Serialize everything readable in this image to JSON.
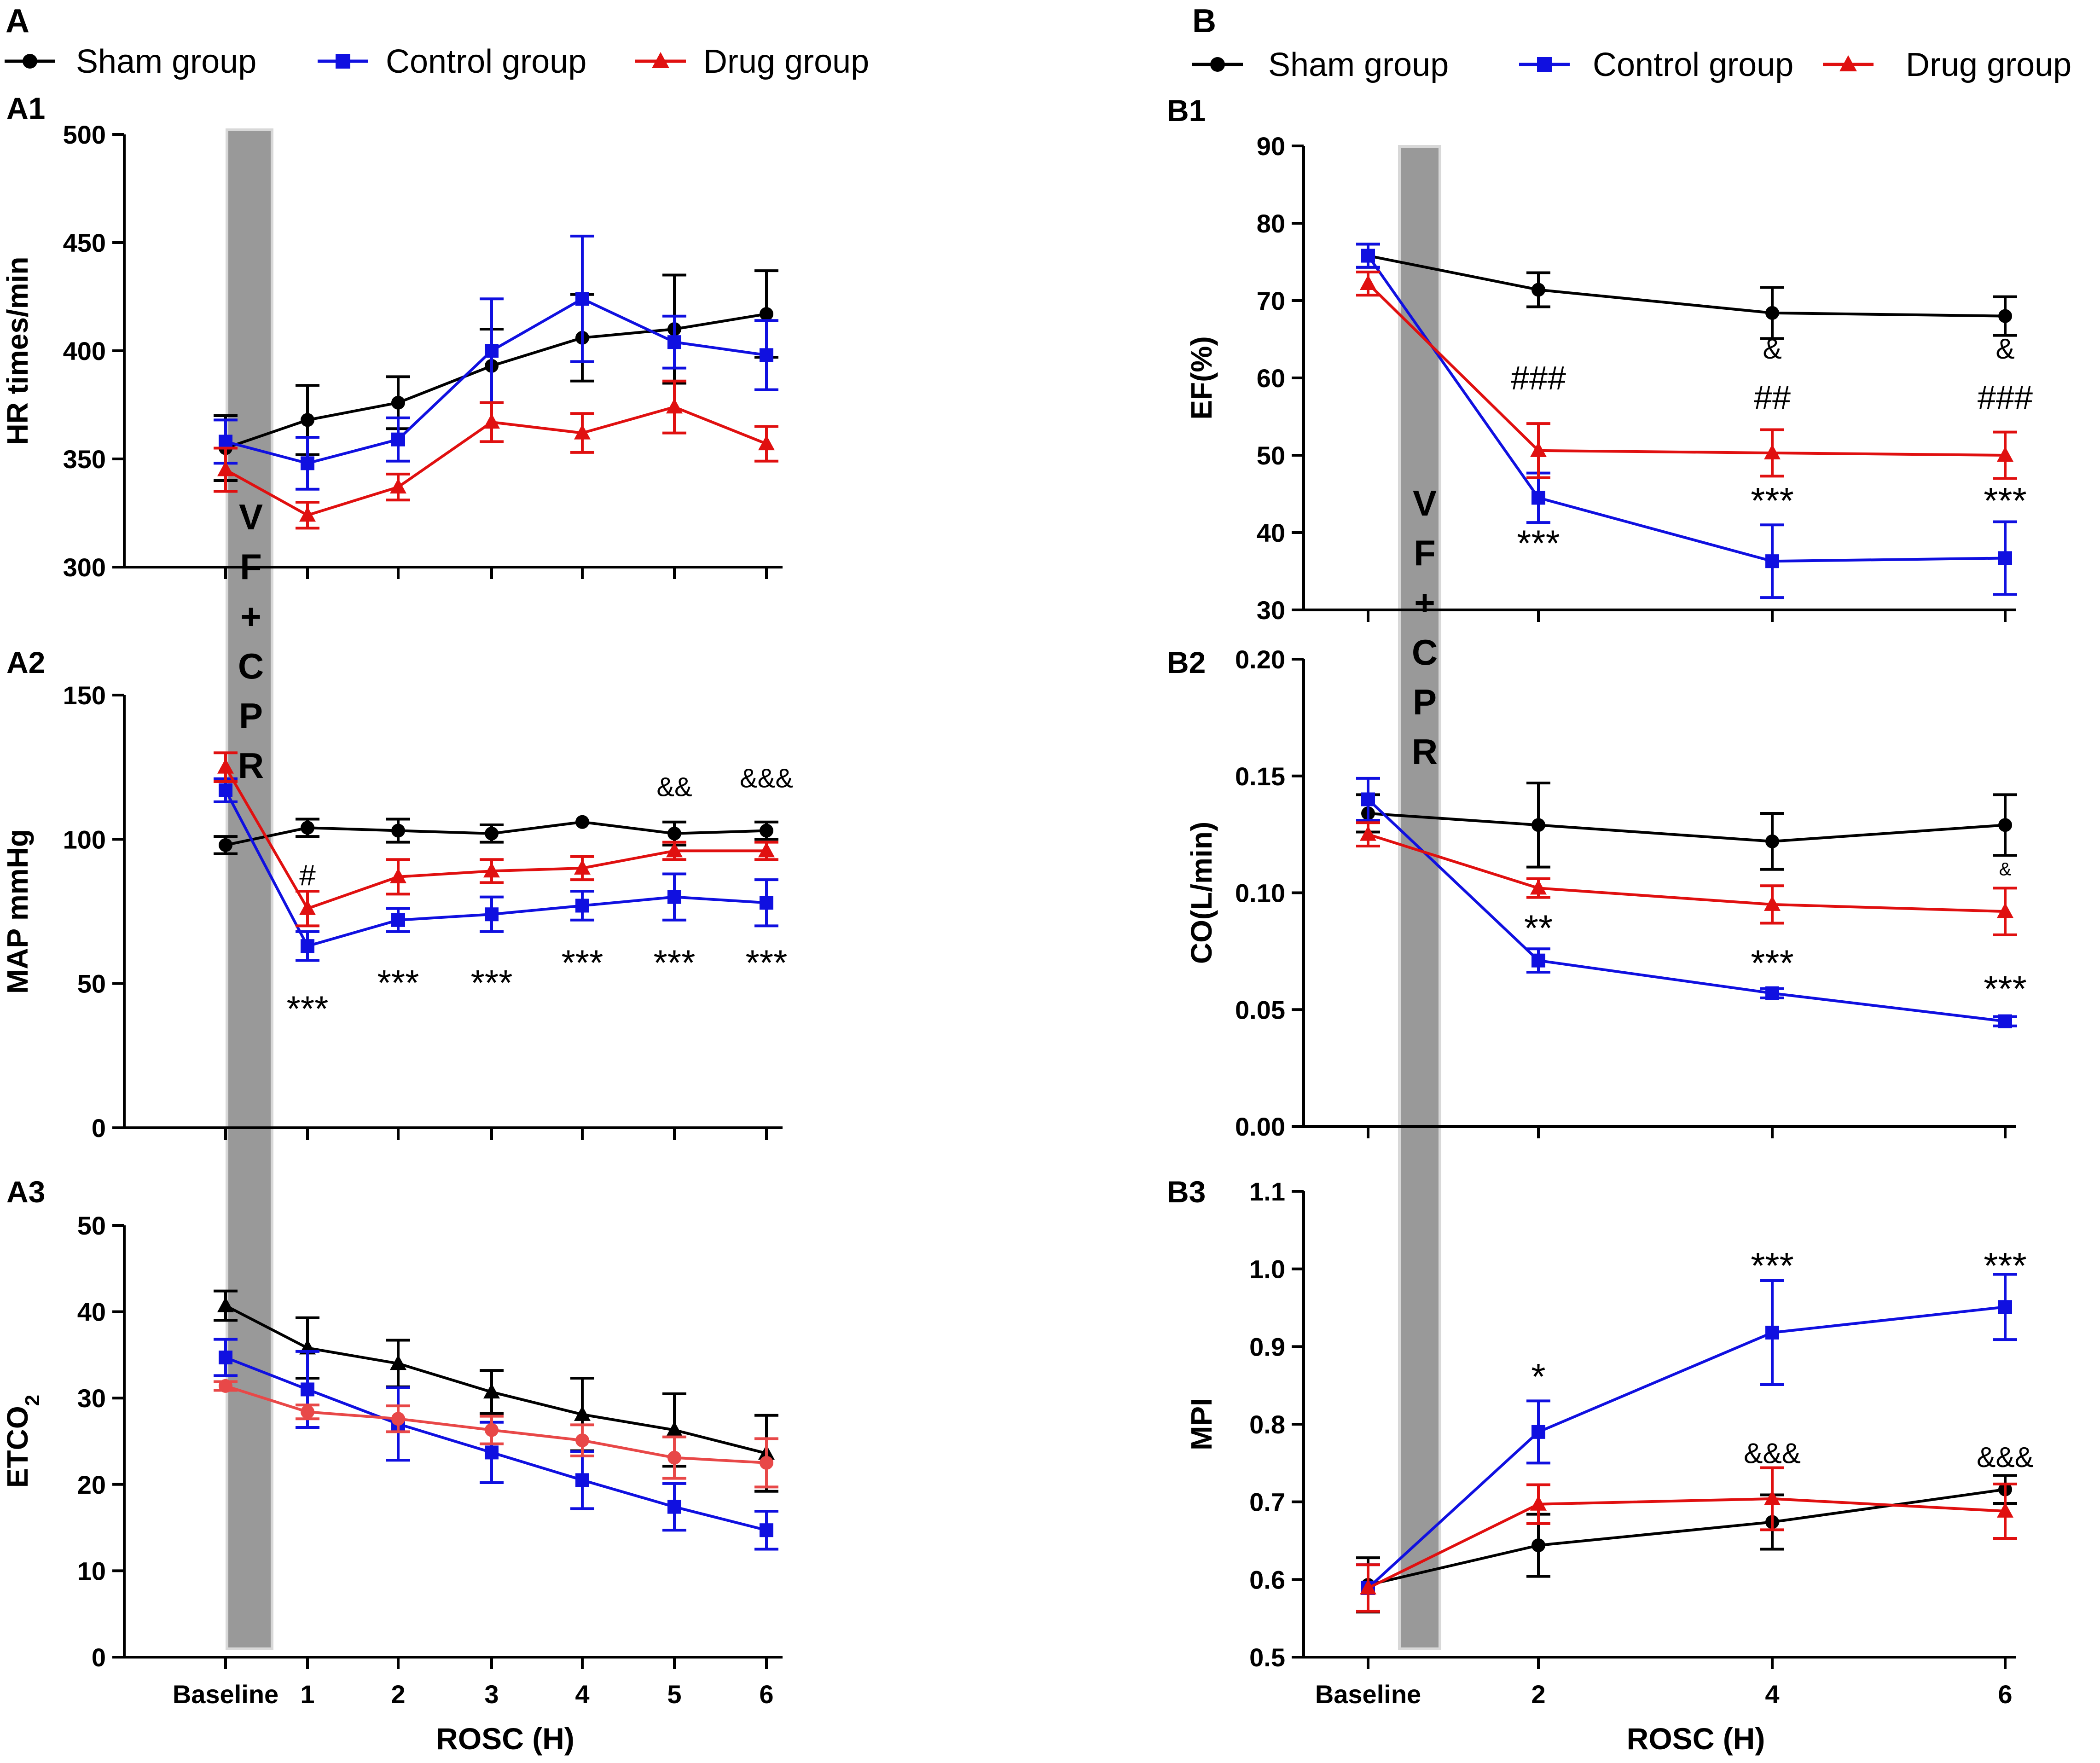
{
  "figure": {
    "panel_A_label": "A",
    "panel_B_label": "B",
    "legend": {
      "sham": "Sham group",
      "control": "Control group",
      "drug": "Drug group"
    },
    "intervention_letters": [
      "V",
      "F",
      "+",
      "C",
      "P",
      "R"
    ],
    "colors": {
      "sham": "#000000",
      "control": "#1010e0",
      "drug": "#e01010",
      "drug_light": "#e84848",
      "band": "#999999"
    }
  },
  "chart_data": [
    {
      "id": "A1",
      "type": "line",
      "label": "A1",
      "ylabel": "HR times/min",
      "xlabel": "",
      "categories": [
        "Baseline",
        "1",
        "2",
        "3",
        "4",
        "5",
        "6"
      ],
      "ylim": [
        300,
        500
      ],
      "yticks": [
        300,
        350,
        400,
        450,
        500
      ],
      "series": [
        {
          "name": "Sham group",
          "key": "sham",
          "marker": "circle",
          "values": [
            355,
            368,
            376,
            393,
            406,
            410,
            417
          ],
          "errors": [
            15,
            16,
            12,
            17,
            20,
            25,
            20
          ]
        },
        {
          "name": "Control group",
          "key": "control",
          "marker": "square",
          "values": [
            358,
            348,
            359,
            400,
            424,
            404,
            398
          ],
          "errors": [
            10,
            12,
            10,
            24,
            29,
            12,
            16
          ]
        },
        {
          "name": "Drug group",
          "key": "drug",
          "marker": "triangle",
          "values": [
            345,
            324,
            337,
            367,
            362,
            374,
            357
          ],
          "errors": [
            10,
            6,
            6,
            9,
            9,
            12,
            8
          ]
        }
      ],
      "annotations": []
    },
    {
      "id": "A2",
      "type": "line",
      "label": "A2",
      "ylabel": "MAP mmHg",
      "xlabel": "",
      "categories": [
        "Baseline",
        "1",
        "2",
        "3",
        "4",
        "5",
        "6"
      ],
      "ylim": [
        0,
        150
      ],
      "yticks": [
        0,
        50,
        100,
        150
      ],
      "series": [
        {
          "name": "Sham group",
          "key": "sham",
          "marker": "circle",
          "values": [
            98,
            104,
            103,
            102,
            106,
            102,
            103
          ],
          "errors": [
            3,
            3,
            4,
            3,
            0,
            4,
            3
          ]
        },
        {
          "name": "Control group",
          "key": "control",
          "marker": "square",
          "values": [
            117,
            63,
            72,
            74,
            77,
            80,
            78
          ],
          "errors": [
            4,
            5,
            4,
            6,
            5,
            8,
            8
          ]
        },
        {
          "name": "Drug group",
          "key": "drug",
          "marker": "triangle",
          "values": [
            125,
            76,
            87,
            89,
            90,
            96,
            96
          ],
          "errors": [
            5,
            6,
            6,
            4,
            4,
            3,
            3
          ]
        }
      ],
      "annotations": [
        {
          "x": 1,
          "y": 84,
          "text": "#",
          "size": 64
        },
        {
          "x": 1,
          "y": 37,
          "text": "***",
          "size": 78
        },
        {
          "x": 2,
          "y": 46,
          "text": "***",
          "size": 78
        },
        {
          "x": 3,
          "y": 46,
          "text": "***",
          "size": 78
        },
        {
          "x": 4,
          "y": 53,
          "text": "***",
          "size": 78
        },
        {
          "x": 5,
          "y": 53,
          "text": "***",
          "size": 78
        },
        {
          "x": 6,
          "y": 53,
          "text": "***",
          "size": 78
        },
        {
          "x": 5,
          "y": 115,
          "text": "&&",
          "size": 58
        },
        {
          "x": 6,
          "y": 118,
          "text": "&&&",
          "size": 58
        }
      ]
    },
    {
      "id": "A3",
      "type": "line",
      "label": "A3",
      "ylabel": "ETCO",
      "ylabel_sub": "2",
      "xlabel": "ROSC (H)",
      "categories": [
        "Baseline",
        "1",
        "2",
        "3",
        "4",
        "5",
        "6"
      ],
      "ylim": [
        0,
        50
      ],
      "yticks": [
        0,
        10,
        20,
        30,
        40,
        50
      ],
      "series": [
        {
          "name": "Sham group",
          "key": "sham",
          "marker": "triangle",
          "values": [
            40.7,
            35.8,
            34.0,
            30.7,
            28.1,
            26.3,
            23.6
          ],
          "errors": [
            1.7,
            3.5,
            2.7,
            2.5,
            4.2,
            4.2,
            4.4
          ]
        },
        {
          "name": "Control group",
          "key": "control",
          "marker": "square",
          "values": [
            34.7,
            31.0,
            27.0,
            23.7,
            20.5,
            17.4,
            14.7
          ],
          "errors": [
            2.1,
            4.4,
            4.2,
            3.5,
            3.3,
            2.7,
            2.2
          ]
        },
        {
          "name": "Drug group",
          "key": "drug_light",
          "marker": "circle",
          "values": [
            31.4,
            28.4,
            27.6,
            26.3,
            25.1,
            23.1,
            22.5
          ],
          "errors": [
            0.5,
            0.8,
            1.5,
            1.6,
            1.8,
            2.4,
            2.8
          ]
        }
      ],
      "annotations": []
    },
    {
      "id": "B1",
      "type": "line",
      "label": "B1",
      "ylabel": "EF(%)",
      "xlabel": "",
      "categories": [
        "Baseline",
        "2",
        "4",
        "6"
      ],
      "ylim": [
        30,
        90
      ],
      "yticks": [
        30,
        40,
        50,
        60,
        70,
        80,
        90
      ],
      "series": [
        {
          "name": "Sham group",
          "key": "sham",
          "marker": "circle",
          "values": [
            75.8,
            71.4,
            68.4,
            68.0
          ],
          "errors": [
            1.5,
            2.2,
            3.3,
            2.5
          ]
        },
        {
          "name": "Control group",
          "key": "control",
          "marker": "square",
          "values": [
            75.8,
            44.5,
            36.3,
            36.7
          ],
          "errors": [
            1.5,
            3.2,
            4.7,
            4.7
          ]
        },
        {
          "name": "Drug group",
          "key": "drug",
          "marker": "triangle",
          "values": [
            72.2,
            50.6,
            50.3,
            50.0
          ],
          "errors": [
            1.5,
            3.5,
            3.0,
            3.0
          ]
        }
      ],
      "annotations": [
        {
          "x": 1,
          "y": 58.5,
          "text": "###",
          "size": 72
        },
        {
          "x": 1,
          "y": 37.0,
          "text": "***",
          "size": 80
        },
        {
          "x": 2,
          "y": 62.5,
          "text": "&",
          "size": 62
        },
        {
          "x": 2,
          "y": 56.0,
          "text": "##",
          "size": 72
        },
        {
          "x": 2,
          "y": 42.5,
          "text": "***",
          "size": 80
        },
        {
          "x": 3,
          "y": 62.5,
          "text": "&",
          "size": 62
        },
        {
          "x": 3,
          "y": 56.0,
          "text": "###",
          "size": 72
        },
        {
          "x": 3,
          "y": 42.5,
          "text": "***",
          "size": 80
        }
      ]
    },
    {
      "id": "B2",
      "type": "line",
      "label": "B2",
      "ylabel": "CO(L/min)",
      "xlabel": "",
      "categories": [
        "Baseline",
        "2",
        "4",
        "6"
      ],
      "ylim": [
        0,
        0.2
      ],
      "yticks": [
        0.0,
        0.05,
        0.1,
        0.15,
        0.2
      ],
      "series": [
        {
          "name": "Sham group",
          "key": "sham",
          "marker": "circle",
          "values": [
            0.134,
            0.129,
            0.122,
            0.129
          ],
          "errors": [
            0.008,
            0.018,
            0.012,
            0.013
          ]
        },
        {
          "name": "Control group",
          "key": "control",
          "marker": "square",
          "values": [
            0.14,
            0.071,
            0.057,
            0.045
          ],
          "errors": [
            0.009,
            0.005,
            0.002,
            0.002
          ]
        },
        {
          "name": "Drug group",
          "key": "drug",
          "marker": "triangle",
          "values": [
            0.125,
            0.102,
            0.095,
            0.092
          ],
          "errors": [
            0.005,
            0.004,
            0.008,
            0.01
          ]
        }
      ],
      "annotations": [
        {
          "x": 1,
          "y": 0.0795,
          "text": "**",
          "size": 80
        },
        {
          "x": 2,
          "y": 0.0645,
          "text": "***",
          "size": 80
        },
        {
          "x": 3,
          "y": 0.0535,
          "text": "***",
          "size": 80
        },
        {
          "x": 3,
          "y": 0.1075,
          "text": "&",
          "size": 40
        }
      ]
    },
    {
      "id": "B3",
      "type": "line",
      "label": "B3",
      "ylabel": "MPI",
      "xlabel": "ROSC (H)",
      "categories": [
        "Baseline",
        "2",
        "4",
        "6"
      ],
      "ylim": [
        0.5,
        1.1
      ],
      "yticks": [
        0.5,
        0.6,
        0.7,
        0.8,
        0.9,
        1.0,
        1.1
      ],
      "series": [
        {
          "name": "Sham group",
          "key": "sham",
          "marker": "circle",
          "values": [
            0.593,
            0.644,
            0.674,
            0.716
          ],
          "errors": [
            0.035,
            0.04,
            0.035,
            0.018
          ]
        },
        {
          "name": "Control group",
          "key": "control",
          "marker": "square",
          "values": [
            0.589,
            0.79,
            0.918,
            0.951
          ],
          "errors": [
            0.03,
            0.04,
            0.067,
            0.042
          ]
        },
        {
          "name": "Drug group",
          "key": "drug",
          "marker": "triangle",
          "values": [
            0.589,
            0.697,
            0.704,
            0.688
          ],
          "errors": [
            0.03,
            0.025,
            0.04,
            0.035
          ]
        }
      ],
      "annotations": [
        {
          "x": 1,
          "y": 0.845,
          "text": "*",
          "size": 80
        },
        {
          "x": 2,
          "y": 0.988,
          "text": "***",
          "size": 80
        },
        {
          "x": 3,
          "y": 0.988,
          "text": "***",
          "size": 80
        },
        {
          "x": 2,
          "y": 0.75,
          "text": "&&&",
          "size": 62
        },
        {
          "x": 3,
          "y": 0.745,
          "text": "&&&",
          "size": 62
        }
      ]
    }
  ]
}
